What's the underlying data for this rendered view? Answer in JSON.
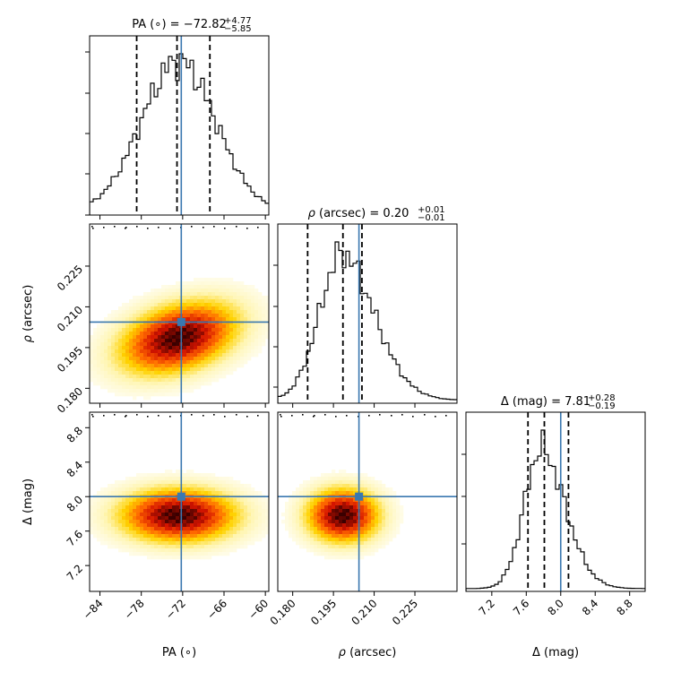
{
  "chart_data": {
    "type": "corner",
    "truth_color": "#3a78b0",
    "hist_color": "#000000",
    "colormap": [
      "#ffffff",
      "#fff5b0",
      "#ffd200",
      "#ff6a00",
      "#d41400",
      "#3a0000"
    ],
    "parameters": [
      {
        "id": "pa",
        "label_html": "PA (∘)",
        "label_pre": "PA (",
        "label_sym": "∘",
        "label_post": ")",
        "range": [
          -85.5,
          -59.5
        ],
        "ticks": [
          -84,
          -78,
          -72,
          -66,
          -60
        ],
        "tick_labels": [
          "−84",
          "−78",
          "−72",
          "−66",
          "−60"
        ],
        "truth": -72.2,
        "quantiles": [
          -78.67,
          -72.82,
          -68.05
        ],
        "title_pre": "PA (∘) = ",
        "title_val": "−72.82",
        "title_sup": "+4.77",
        "title_sub": "−5.85",
        "mean": -72.6,
        "sigma": 5.4
      },
      {
        "id": "rho",
        "label_pre": "",
        "label_sym": "ρ",
        "label_post": " (arcsec)",
        "range": [
          0.1745,
          0.2405
        ],
        "ticks": [
          0.18,
          0.195,
          0.21,
          0.225
        ],
        "tick_labels": [
          "0.180",
          "0.195",
          "0.210",
          "0.225"
        ],
        "truth": 0.2044,
        "quantiles": [
          0.1855,
          0.1985,
          0.2055
        ],
        "title_pre": "",
        "title_sym": "ρ",
        "title_mid": " (arcsec) = ",
        "title_val": "0.20",
        "title_sup": "+0.01",
        "title_sub": "−0.01",
        "mean": 0.1985,
        "sigma": 0.0085
      },
      {
        "id": "mag",
        "label_pre": "Δ (mag)",
        "label_sym": "",
        "label_post": "",
        "range": [
          6.9,
          8.98
        ],
        "ticks": [
          7.2,
          7.6,
          8.0,
          8.4,
          8.8
        ],
        "tick_labels": [
          "7.2",
          "7.6",
          "8.0",
          "8.4",
          "8.8"
        ],
        "truth": 8.0,
        "quantiles": [
          7.62,
          7.81,
          8.09
        ],
        "title_pre": "Δ (mag) = ",
        "title_val": "7.81",
        "title_sup": "+0.28",
        "title_sub": "−0.19",
        "mean": 7.78,
        "sigma": 0.2
      },
      {
        "id": "rho_y",
        "label_sym": "ρ",
        "label_post": " (arcsec)"
      },
      {
        "id": "mag_y",
        "label_pre": "Δ (mag)"
      }
    ],
    "y_axis_labels": {
      "row1": {
        "sym": "ρ",
        "text": " (arcsec)"
      },
      "row2": {
        "text": "Δ (mag)"
      }
    },
    "x_axis_labels": {
      "col0": {
        "text": "PA (∘)"
      },
      "col1": {
        "sym": "ρ",
        "text": " (arcsec)"
      },
      "col2": {
        "text": "Δ (mag)"
      }
    }
  }
}
